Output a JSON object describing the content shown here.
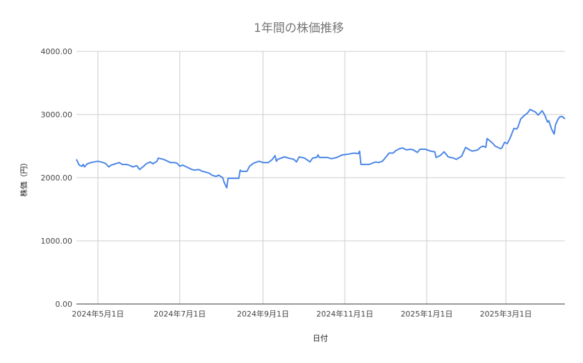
{
  "chart_data": {
    "type": "line",
    "title": "1年間の株価推移",
    "xlabel": "日付",
    "ylabel": "株価（円）",
    "xlim": [
      "2024-04-15",
      "2025-04-14"
    ],
    "ylim": [
      0,
      4000
    ],
    "grid": true,
    "legend": "none",
    "line_color": "#4a86e8",
    "y_ticks": [
      {
        "value": 0,
        "label": "0.00"
      },
      {
        "value": 1000,
        "label": "1000.00"
      },
      {
        "value": 2000,
        "label": "2000.00"
      },
      {
        "value": 3000,
        "label": "3000.00"
      },
      {
        "value": 4000,
        "label": "4000.00"
      }
    ],
    "x_ticks": [
      {
        "value": "2024-05-01",
        "label": "2024年5月1日"
      },
      {
        "value": "2024-07-01",
        "label": "2024年7月1日"
      },
      {
        "value": "2024-09-01",
        "label": "2024年9月1日"
      },
      {
        "value": "2024-11-01",
        "label": "2024年11月1日"
      },
      {
        "value": "2025-01-01",
        "label": "2025年1月1日"
      },
      {
        "value": "2025-03-01",
        "label": "2025年3月1日"
      }
    ],
    "series": [
      {
        "x": [
          "2024-04-15",
          "2024-04-17",
          "2024-04-19",
          "2024-04-20",
          "2024-04-21",
          "2024-04-23",
          "2024-04-26",
          "2024-04-28",
          "2024-05-01",
          "2024-05-05",
          "2024-05-07",
          "2024-05-09",
          "2024-05-11",
          "2024-05-14",
          "2024-05-17",
          "2024-05-19",
          "2024-05-22",
          "2024-05-24",
          "2024-05-27",
          "2024-05-30",
          "2024-06-01",
          "2024-06-04",
          "2024-06-06",
          "2024-06-09",
          "2024-06-11",
          "2024-06-14",
          "2024-06-15",
          "2024-06-19",
          "2024-06-22",
          "2024-06-24",
          "2024-06-27",
          "2024-06-29",
          "2024-07-01",
          "2024-07-03",
          "2024-07-06",
          "2024-07-10",
          "2024-07-12",
          "2024-07-15",
          "2024-07-18",
          "2024-07-20",
          "2024-07-23",
          "2024-07-25",
          "2024-07-28",
          "2024-07-30",
          "2024-08-02",
          "2024-08-03",
          "2024-08-05",
          "2024-08-06",
          "2024-08-10",
          "2024-08-14",
          "2024-08-15",
          "2024-08-16",
          "2024-08-20",
          "2024-08-22",
          "2024-08-25",
          "2024-08-29",
          "2024-09-01",
          "2024-09-05",
          "2024-09-08",
          "2024-09-10",
          "2024-09-11",
          "2024-09-12",
          "2024-09-17",
          "2024-09-20",
          "2024-09-24",
          "2024-09-26",
          "2024-09-28",
          "2024-10-02",
          "2024-10-04",
          "2024-10-06",
          "2024-10-08",
          "2024-10-11",
          "2024-10-12",
          "2024-10-13",
          "2024-10-19",
          "2024-10-22",
          "2024-10-26",
          "2024-10-30",
          "2024-11-03",
          "2024-11-08",
          "2024-11-11",
          "2024-11-12",
          "2024-11-13",
          "2024-11-19",
          "2024-11-24",
          "2024-11-26",
          "2024-11-29",
          "2024-12-01",
          "2024-12-04",
          "2024-12-07",
          "2024-12-09",
          "2024-12-12",
          "2024-12-14",
          "2024-12-17",
          "2024-12-20",
          "2024-12-22",
          "2024-12-25",
          "2024-12-27",
          "2024-12-31",
          "2025-01-04",
          "2025-01-07",
          "2025-01-08",
          "2025-01-11",
          "2025-01-14",
          "2025-01-17",
          "2025-01-21",
          "2025-01-23",
          "2025-01-27",
          "2025-01-30",
          "2025-02-02",
          "2025-02-04",
          "2025-02-08",
          "2025-02-10",
          "2025-02-12",
          "2025-02-14",
          "2025-02-15",
          "2025-02-19",
          "2025-02-21",
          "2025-02-25",
          "2025-02-26",
          "2025-02-28",
          "2025-03-02",
          "2025-03-04",
          "2025-03-07",
          "2025-03-09",
          "2025-03-10",
          "2025-03-12",
          "2025-03-15",
          "2025-03-17",
          "2025-03-19",
          "2025-03-23",
          "2025-03-25",
          "2025-03-28",
          "2025-03-30",
          "2025-04-01",
          "2025-04-02",
          "2025-04-04",
          "2025-04-06",
          "2025-04-07",
          "2025-04-09",
          "2025-04-10",
          "2025-04-12",
          "2025-04-14"
        ],
        "y": [
          2290,
          2200,
          2180,
          2210,
          2170,
          2220,
          2240,
          2250,
          2260,
          2240,
          2220,
          2170,
          2200,
          2220,
          2240,
          2210,
          2210,
          2200,
          2170,
          2190,
          2130,
          2180,
          2220,
          2250,
          2220,
          2260,
          2310,
          2290,
          2260,
          2240,
          2240,
          2230,
          2180,
          2200,
          2170,
          2130,
          2120,
          2130,
          2100,
          2090,
          2070,
          2040,
          2020,
          2040,
          2000,
          1930,
          1840,
          1990,
          1990,
          1990,
          2120,
          2100,
          2100,
          2180,
          2230,
          2260,
          2240,
          2240,
          2290,
          2350,
          2260,
          2290,
          2330,
          2310,
          2290,
          2250,
          2330,
          2310,
          2280,
          2250,
          2310,
          2320,
          2360,
          2320,
          2320,
          2300,
          2320,
          2360,
          2370,
          2390,
          2380,
          2420,
          2210,
          2210,
          2250,
          2240,
          2260,
          2310,
          2390,
          2390,
          2430,
          2460,
          2470,
          2440,
          2450,
          2440,
          2400,
          2450,
          2450,
          2420,
          2410,
          2320,
          2350,
          2410,
          2330,
          2310,
          2290,
          2340,
          2480,
          2440,
          2420,
          2440,
          2480,
          2500,
          2480,
          2620,
          2550,
          2500,
          2460,
          2470,
          2560,
          2540,
          2620,
          2780,
          2770,
          2800,
          2930,
          2990,
          3020,
          3080,
          3040,
          2990,
          3060,
          2990,
          2880,
          2900,
          2770,
          2690,
          2840,
          2930,
          2960,
          2970,
          2930
        ]
      }
    ]
  }
}
